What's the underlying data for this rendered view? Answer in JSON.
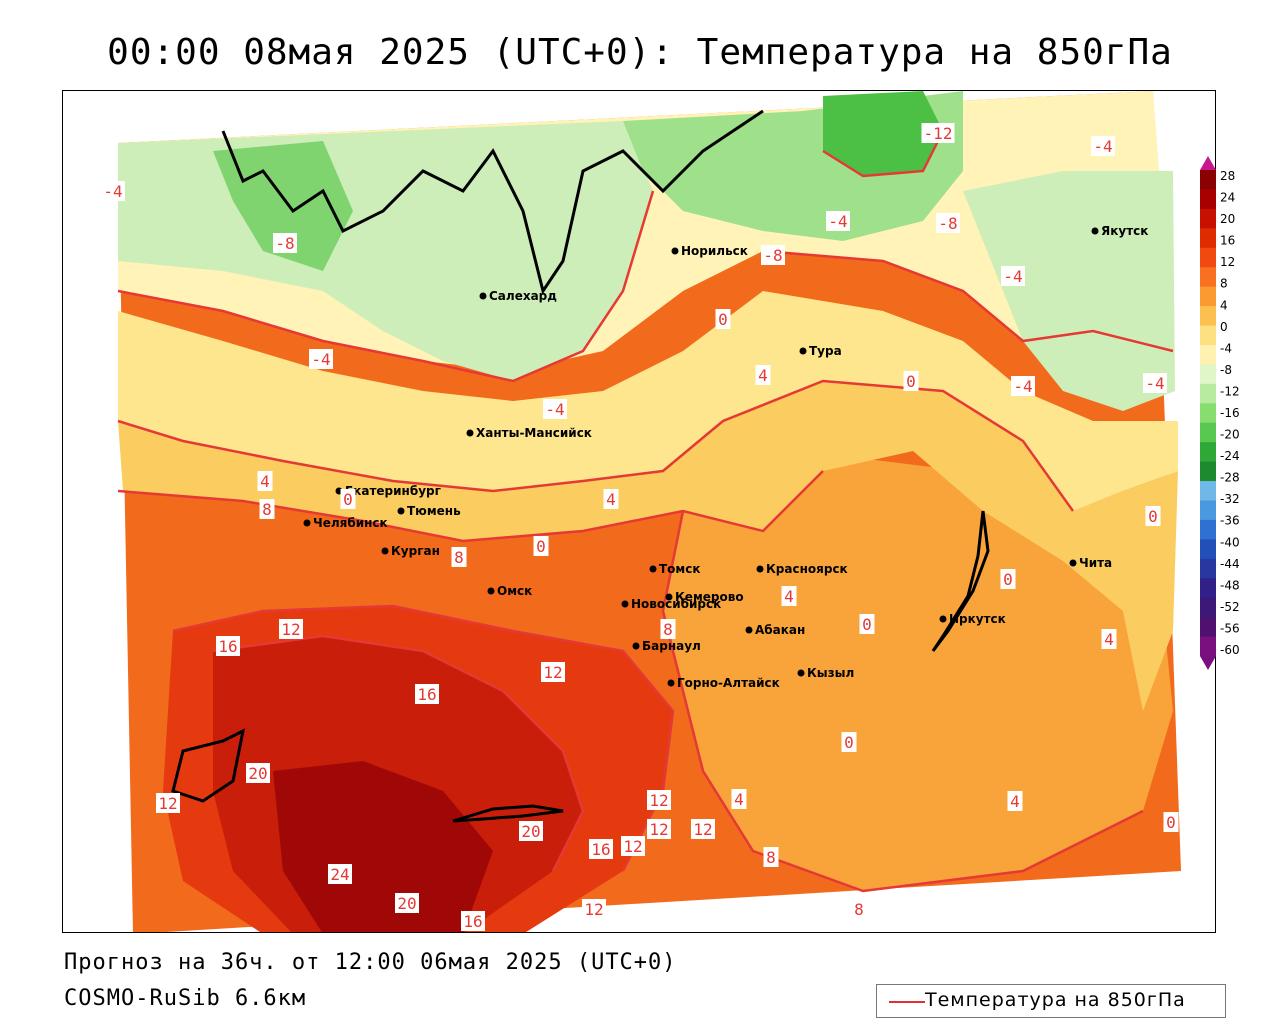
{
  "title": "00:00 08мая 2025 (UTC+0): Температура на 850гПа",
  "footer": {
    "forecast": "Прогноз на 36ч. от 12:00 06мая 2025 (UTC+0)",
    "model": "COSMO-RuSib 6.6км"
  },
  "legend": {
    "label": "Температура на 850гПа",
    "line_color": "#e03030"
  },
  "colorbar": {
    "ticks": [
      "28",
      "24",
      "20",
      "16",
      "12",
      "8",
      "4",
      "0",
      "-4",
      "-8",
      "-12",
      "-16",
      "-20",
      "-24",
      "-28",
      "-32",
      "-36",
      "-40",
      "-44",
      "-48",
      "-52",
      "-56",
      "-60"
    ],
    "colors": [
      "#8b0000",
      "#a80000",
      "#c81000",
      "#e02a00",
      "#f04a10",
      "#f87020",
      "#fb9a30",
      "#fcc050",
      "#fde080",
      "#fff2b0",
      "#e0f5c8",
      "#b8eba0",
      "#88dd70",
      "#58c850",
      "#30a838",
      "#1e8a30",
      "#70b8e8",
      "#4a98e0",
      "#3070d0",
      "#2050b8",
      "#2838a0",
      "#302088",
      "#3c1878",
      "#501070",
      "#7a1080"
    ]
  },
  "cities": [
    {
      "name": "Якутск"
    },
    {
      "name": "Норильск"
    },
    {
      "name": "Салехард"
    },
    {
      "name": "Тура"
    },
    {
      "name": "Ханты-Мансийск"
    },
    {
      "name": "Екатеринбург"
    },
    {
      "name": "Тюмень"
    },
    {
      "name": "Челябинск"
    },
    {
      "name": "Курган"
    },
    {
      "name": "Омск"
    },
    {
      "name": "Новосибирск"
    },
    {
      "name": "Томск"
    },
    {
      "name": "Кемерово"
    },
    {
      "name": "Красноярск"
    },
    {
      "name": "Барнаул"
    },
    {
      "name": "Абакан"
    },
    {
      "name": "Горно-Алтайск"
    },
    {
      "name": "Кызыл"
    },
    {
      "name": "Иркутск"
    },
    {
      "name": "Чита"
    }
  ],
  "contour_labels": [
    "-12",
    "-4",
    "-4",
    "-8",
    "-8",
    "-8",
    "-4",
    "-4",
    "0",
    "-4",
    "4",
    "0",
    "-4",
    "-4",
    "-4",
    "4",
    "0",
    "8",
    "4",
    "0",
    "0",
    "8",
    "0",
    "12",
    "0",
    "4",
    "4",
    "16",
    "16",
    "12",
    "8",
    "0",
    "20",
    "12",
    "20",
    "16",
    "12",
    "12",
    "4",
    "4",
    "0",
    "12",
    "12",
    "8",
    "24",
    "20",
    "16",
    "12",
    "8"
  ]
}
